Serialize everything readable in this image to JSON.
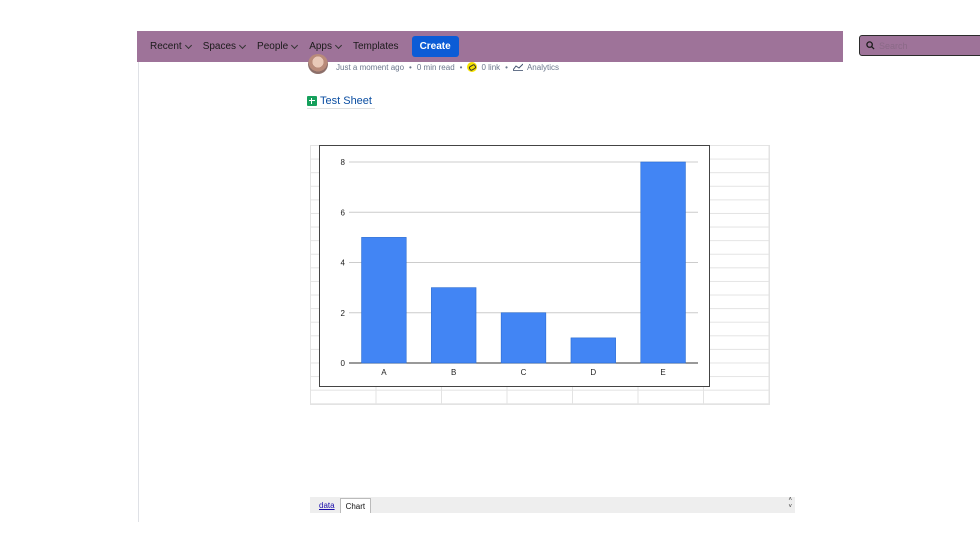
{
  "nav": {
    "items": [
      {
        "label": "Recent",
        "dropdown": true
      },
      {
        "label": "Spaces",
        "dropdown": true
      },
      {
        "label": "People",
        "dropdown": true
      },
      {
        "label": "Apps",
        "dropdown": true
      },
      {
        "label": "Templates",
        "dropdown": false
      }
    ],
    "create_label": "Create",
    "search_placeholder": "Search",
    "bar_color": "#9e7399",
    "accent_color": "#0c5cd6"
  },
  "meta": {
    "updated": "Just a moment ago",
    "read_time": "0 min read",
    "links": "0 link",
    "analytics": "Analytics"
  },
  "sheet": {
    "title": "Test Sheet",
    "tabs": [
      {
        "label": "data",
        "active": false
      },
      {
        "label": "Chart",
        "active": true
      }
    ],
    "scroll_up": "˄",
    "scroll_down": "˅"
  },
  "chart_data": {
    "type": "bar",
    "categories": [
      "A",
      "B",
      "C",
      "D",
      "E"
    ],
    "values": [
      5,
      3,
      2,
      1,
      8
    ],
    "ylim": [
      0,
      8
    ],
    "yticks": [
      0,
      2,
      4,
      6,
      8
    ],
    "grid": true,
    "bar_color": "#4285f4",
    "title": "",
    "xlabel": "",
    "ylabel": ""
  }
}
